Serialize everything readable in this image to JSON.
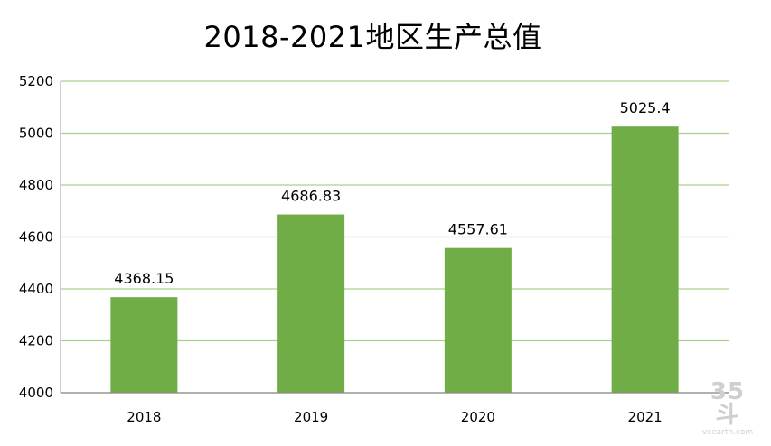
{
  "chart_data": {
    "type": "bar",
    "title": "2018-2021地区生产总值",
    "categories": [
      "2018",
      "2019",
      "2020",
      "2021"
    ],
    "values": [
      4368.15,
      4686.83,
      4557.61,
      5025.4
    ],
    "value_labels": [
      "4368.15",
      "4686.83",
      "4557.61",
      "5025.4"
    ],
    "yticks": [
      4000,
      4200,
      4400,
      4600,
      4800,
      5000,
      5200
    ],
    "ylim": [
      4000,
      5200
    ],
    "xlabel": "",
    "ylabel": "",
    "grid": true,
    "bar_color": "#70ad47",
    "grid_color": "#a9d08e"
  },
  "watermark": {
    "main": "35斗",
    "sub": "vcearth.com"
  }
}
